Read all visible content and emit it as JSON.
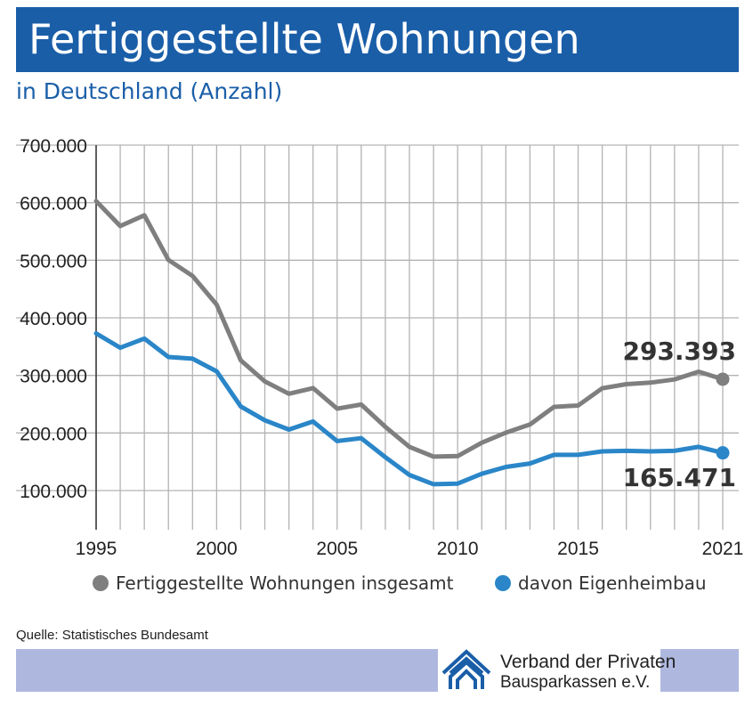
{
  "header": {
    "title": "Fertiggestellte Wohnungen",
    "subtitle": "in Deutschland (Anzahl)"
  },
  "chart_data": {
    "type": "line",
    "x": [
      1995,
      1996,
      1997,
      1998,
      1999,
      2000,
      2001,
      2002,
      2003,
      2004,
      2005,
      2006,
      2007,
      2008,
      2009,
      2010,
      2011,
      2012,
      2013,
      2014,
      2015,
      2016,
      2017,
      2018,
      2019,
      2020,
      2021
    ],
    "series": [
      {
        "name": "Fertiggestellte Wohnungen insgesamt",
        "color": "#7f7f7f",
        "values": [
          602757,
          559488,
          578179,
          500690,
          472845,
          423044,
          326187,
          289587,
          268123,
          278008,
          242316,
          249436,
          210739,
          175927,
          158987,
          159832,
          183110,
          200466,
          214817,
          245325,
          247722,
          277691,
          284816,
          287352,
          293002,
          306376,
          293393
        ]
      },
      {
        "name": "davon Eigenheimbau",
        "color": "#2a86c8",
        "values": [
          373000,
          348000,
          364000,
          332000,
          329000,
          307000,
          246000,
          222000,
          206000,
          220000,
          186000,
          191000,
          158000,
          127000,
          111000,
          112000,
          129000,
          141000,
          147000,
          162000,
          162000,
          168000,
          169000,
          168000,
          169000,
          176000,
          165471
        ]
      }
    ],
    "ylim": [
      0,
      700000
    ],
    "yticks": [
      "100.000",
      "200.000",
      "300.000",
      "400.000",
      "500.000",
      "600.000",
      "700.000"
    ],
    "xtick_labels": [
      "1995",
      "2000",
      "2005",
      "2010",
      "2015",
      "2021"
    ],
    "end_labels": [
      "293.393",
      "165.471"
    ],
    "grid": true
  },
  "legend": {
    "items": [
      {
        "label": "Fertiggestellte Wohnungen insgesamt",
        "color": "#7f7f7f"
      },
      {
        "label": "davon Eigenheimbau",
        "color": "#2a86c8"
      }
    ]
  },
  "source": "Quelle: Statistisches Bundesamt",
  "footer": {
    "bar_color": "#aeb8df",
    "logo_line1": "Verband der Privaten",
    "logo_line2": "Bausparkassen e.V.",
    "logo_icon": "house-roof-icon"
  }
}
